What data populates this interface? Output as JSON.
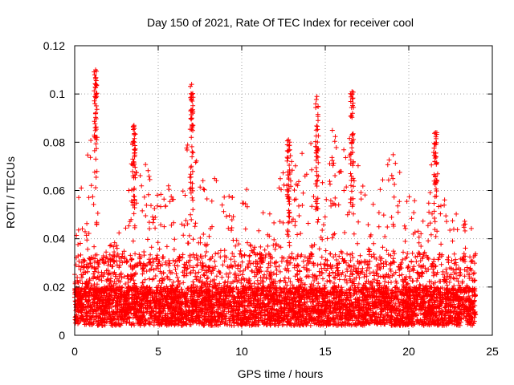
{
  "chart_data": {
    "type": "scatter",
    "title": "Day 150 of 2021, Rate Of TEC Index for receiver cool",
    "xlabel": "GPS time / hours",
    "ylabel": "ROTI / TECUs",
    "xlim": [
      0,
      25
    ],
    "ylim": [
      0,
      0.12
    ],
    "x_ticks": [
      0,
      5,
      10,
      15,
      20,
      25
    ],
    "y_ticks": [
      0,
      0.02,
      0.04,
      0.06,
      0.08,
      0.1,
      0.12
    ],
    "x_tick_labels": [
      "0",
      "5",
      "10",
      "15",
      "20",
      "25"
    ],
    "y_tick_labels": [
      "0",
      "0.02",
      "0.04",
      "0.06",
      "0.08",
      "0.1",
      "0.12"
    ],
    "grid": true,
    "marker": "+",
    "series_color": "#ff0000",
    "series": [
      {
        "name": "ROTI",
        "envelope_x": [
          0,
          0.5,
          1,
          1.3,
          1.6,
          2,
          2.5,
          3,
          3.5,
          4,
          4.5,
          5,
          5.5,
          6,
          6.5,
          7,
          7.5,
          8,
          8.5,
          9,
          9.5,
          10,
          10.5,
          11,
          11.5,
          12,
          12.5,
          13,
          13.5,
          14,
          14.5,
          15,
          15.5,
          16,
          16.5,
          17,
          17.5,
          18,
          18.5,
          19,
          19.5,
          20,
          20.5,
          21,
          21.5,
          22,
          22.5,
          23,
          23.5,
          24
        ],
        "envelope_y": [
          0.052,
          0.064,
          0.09,
          0.11,
          0.05,
          0.035,
          0.045,
          0.04,
          0.087,
          0.076,
          0.068,
          0.058,
          0.065,
          0.066,
          0.07,
          0.104,
          0.075,
          0.06,
          0.07,
          0.074,
          0.063,
          0.062,
          0.06,
          0.052,
          0.05,
          0.055,
          0.081,
          0.078,
          0.07,
          0.099,
          0.06,
          0.07,
          0.088,
          0.076,
          0.101,
          0.072,
          0.055,
          0.06,
          0.066,
          0.079,
          0.072,
          0.058,
          0.058,
          0.045,
          0.084,
          0.061,
          0.05,
          0.052,
          0.046,
          0.045
        ],
        "peaks": [
          {
            "x": 1.25,
            "y": 0.11
          },
          {
            "x": 3.55,
            "y": 0.087
          },
          {
            "x": 7.0,
            "y": 0.104
          },
          {
            "x": 12.8,
            "y": 0.081
          },
          {
            "x": 14.5,
            "y": 0.099
          },
          {
            "x": 16.6,
            "y": 0.101
          },
          {
            "x": 21.6,
            "y": 0.084
          }
        ],
        "approx_point_count": 6000
      }
    ]
  }
}
